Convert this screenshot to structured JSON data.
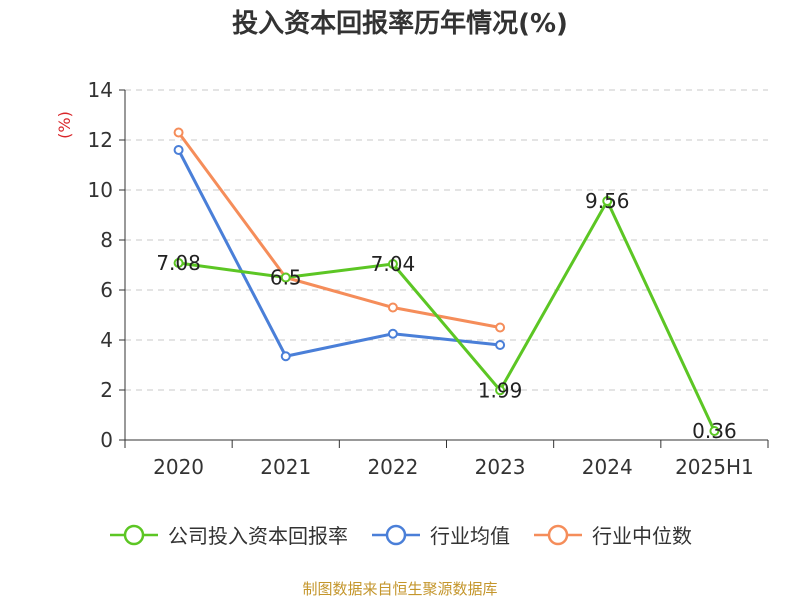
{
  "title": "投入资本回报率历年情况(%)",
  "source": "制图数据来自恒生聚源数据库",
  "chart_data": {
    "type": "line",
    "ylabel": "(%)",
    "xlabel": "",
    "ylim": [
      0,
      14
    ],
    "yticks": [
      0,
      2,
      4,
      6,
      8,
      10,
      12,
      14
    ],
    "categories": [
      "2020",
      "2021",
      "2022",
      "2023",
      "2024",
      "2025H1"
    ],
    "grid": true,
    "legend_position": "bottom",
    "series": [
      {
        "name": "公司投入资本回报率",
        "color": "#5cc624",
        "values": [
          7.08,
          6.5,
          7.04,
          1.99,
          9.56,
          0.36
        ],
        "labels": [
          "7.08",
          "6.5",
          "7.04",
          "1.99",
          "9.56",
          "0.36"
        ]
      },
      {
        "name": "行业均值",
        "color": "#4a7fd8",
        "values": [
          11.6,
          3.35,
          4.25,
          3.8,
          null,
          null
        ],
        "labels": []
      },
      {
        "name": "行业中位数",
        "color": "#f58d5a",
        "values": [
          12.3,
          6.5,
          5.3,
          4.5,
          null,
          null
        ],
        "labels": []
      }
    ]
  }
}
